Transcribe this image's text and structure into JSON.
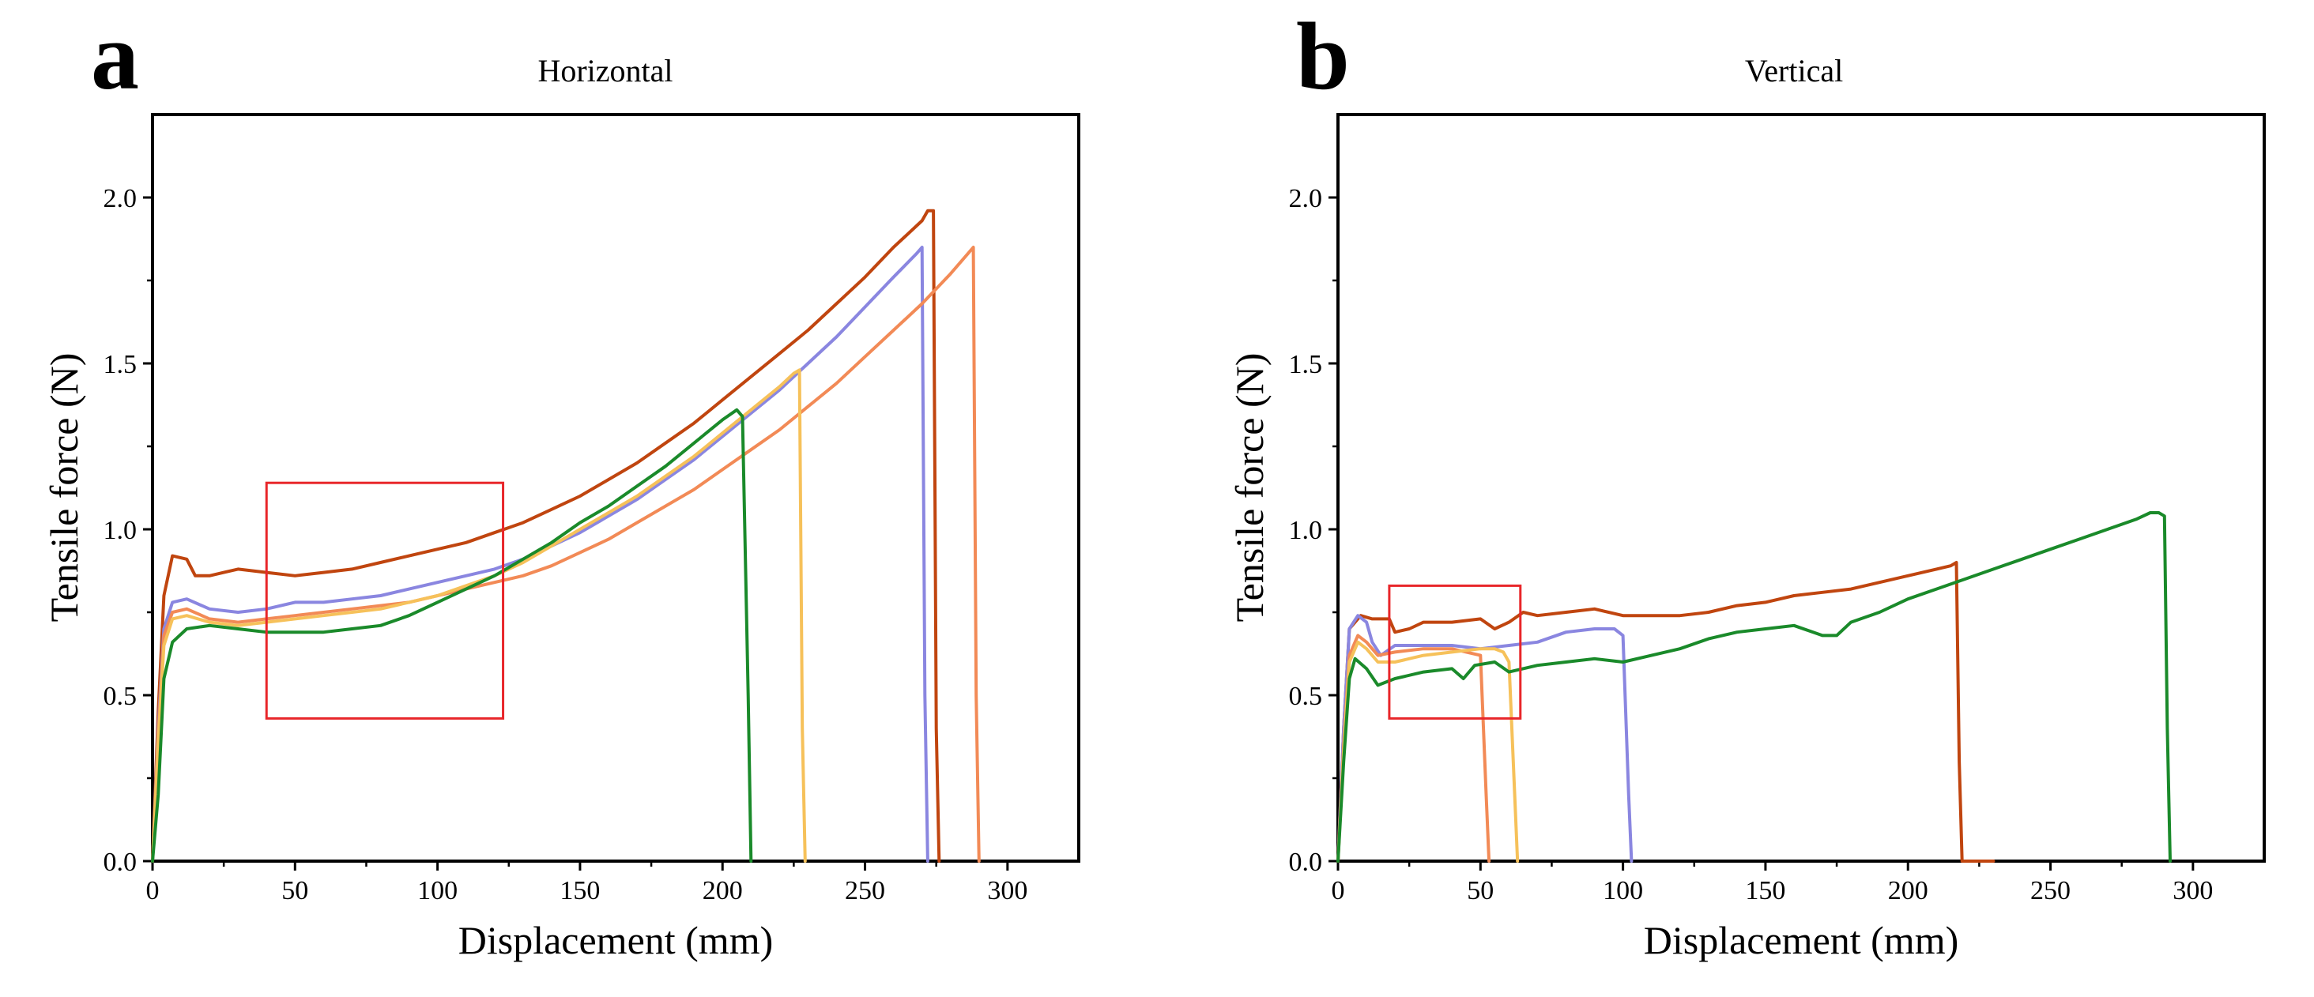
{
  "chart_data": [
    {
      "type": "line",
      "panel_label": "a",
      "title": "Horizontal",
      "xlabel": "Displacement (mm)",
      "ylabel": "Tensile  force (N)",
      "xlim": [
        0,
        325
      ],
      "ylim": [
        0,
        2.25
      ],
      "xticks": [
        0,
        50,
        100,
        150,
        200,
        250,
        300
      ],
      "yticks": [
        0.0,
        0.5,
        1.0,
        1.5,
        2.0
      ],
      "xtick_labels": [
        "0",
        "50",
        "100",
        "150",
        "200",
        "250",
        "300"
      ],
      "ytick_labels": [
        "0.0",
        "0.5",
        "1.0",
        "1.5",
        "2.0"
      ],
      "grid": false,
      "legend": "none",
      "highlight_box": {
        "x": [
          40,
          123
        ],
        "y": [
          0.43,
          1.14
        ],
        "color": "#e8262a"
      },
      "series": [
        {
          "color": "#c0450f",
          "x": [
            0,
            2,
            4,
            7,
            12,
            15,
            20,
            25,
            30,
            40,
            50,
            60,
            70,
            80,
            90,
            100,
            110,
            120,
            130,
            140,
            150,
            160,
            170,
            180,
            190,
            200,
            210,
            220,
            230,
            240,
            250,
            260,
            270,
            272,
            274,
            275,
            276
          ],
          "y": [
            0,
            0.45,
            0.8,
            0.92,
            0.91,
            0.86,
            0.86,
            0.87,
            0.88,
            0.87,
            0.86,
            0.87,
            0.88,
            0.9,
            0.92,
            0.94,
            0.96,
            0.99,
            1.02,
            1.06,
            1.1,
            1.15,
            1.2,
            1.26,
            1.32,
            1.39,
            1.46,
            1.53,
            1.6,
            1.68,
            1.76,
            1.85,
            1.93,
            1.96,
            1.96,
            0.4,
            0.0
          ]
        },
        {
          "color": "#8a86e0",
          "x": [
            0,
            2,
            4,
            7,
            12,
            20,
            30,
            40,
            50,
            60,
            70,
            80,
            90,
            100,
            110,
            120,
            130,
            140,
            150,
            160,
            170,
            180,
            190,
            200,
            210,
            220,
            230,
            240,
            250,
            260,
            268,
            270,
            271,
            272
          ],
          "y": [
            0,
            0.4,
            0.7,
            0.78,
            0.79,
            0.76,
            0.75,
            0.76,
            0.78,
            0.78,
            0.79,
            0.8,
            0.82,
            0.84,
            0.86,
            0.88,
            0.91,
            0.95,
            0.99,
            1.04,
            1.09,
            1.15,
            1.21,
            1.28,
            1.35,
            1.42,
            1.5,
            1.58,
            1.67,
            1.76,
            1.83,
            1.85,
            0.5,
            0.0
          ]
        },
        {
          "color": "#f28a56",
          "x": [
            0,
            2,
            4,
            7,
            12,
            20,
            30,
            40,
            50,
            60,
            70,
            80,
            90,
            100,
            110,
            120,
            130,
            140,
            150,
            160,
            170,
            180,
            190,
            200,
            210,
            220,
            230,
            240,
            250,
            260,
            270,
            280,
            286,
            288,
            289,
            290
          ],
          "y": [
            0,
            0.38,
            0.68,
            0.75,
            0.76,
            0.73,
            0.72,
            0.73,
            0.74,
            0.75,
            0.76,
            0.77,
            0.78,
            0.8,
            0.82,
            0.84,
            0.86,
            0.89,
            0.93,
            0.97,
            1.02,
            1.07,
            1.12,
            1.18,
            1.24,
            1.3,
            1.37,
            1.44,
            1.52,
            1.6,
            1.68,
            1.77,
            1.83,
            1.85,
            0.5,
            0.0
          ]
        },
        {
          "color": "#f6c15a",
          "x": [
            0,
            2,
            4,
            7,
            12,
            20,
            30,
            40,
            50,
            60,
            70,
            80,
            90,
            100,
            110,
            120,
            130,
            140,
            150,
            160,
            170,
            180,
            190,
            200,
            210,
            220,
            225,
            227,
            228,
            229
          ],
          "y": [
            0,
            0.36,
            0.65,
            0.73,
            0.74,
            0.72,
            0.71,
            0.72,
            0.73,
            0.74,
            0.75,
            0.76,
            0.78,
            0.8,
            0.83,
            0.86,
            0.9,
            0.95,
            1.0,
            1.05,
            1.1,
            1.16,
            1.22,
            1.29,
            1.36,
            1.43,
            1.47,
            1.48,
            0.4,
            0.0
          ]
        },
        {
          "color": "#1a8a2a",
          "x": [
            0,
            2,
            4,
            7,
            12,
            20,
            30,
            40,
            50,
            60,
            70,
            80,
            90,
            100,
            110,
            120,
            130,
            140,
            150,
            160,
            170,
            180,
            190,
            200,
            205,
            207,
            209,
            210
          ],
          "y": [
            0,
            0.2,
            0.55,
            0.66,
            0.7,
            0.71,
            0.7,
            0.69,
            0.69,
            0.69,
            0.7,
            0.71,
            0.74,
            0.78,
            0.82,
            0.86,
            0.91,
            0.96,
            1.02,
            1.07,
            1.13,
            1.19,
            1.26,
            1.33,
            1.36,
            1.34,
            0.5,
            0.0
          ]
        }
      ]
    },
    {
      "type": "line",
      "panel_label": "b",
      "title": "Vertical",
      "xlabel": "Displacement (mm)",
      "ylabel": "Tensile  force (N)",
      "xlim": [
        0,
        325
      ],
      "ylim": [
        0,
        2.25
      ],
      "xticks": [
        0,
        50,
        100,
        150,
        200,
        250,
        300
      ],
      "yticks": [
        0.0,
        0.5,
        1.0,
        1.5,
        2.0
      ],
      "xtick_labels": [
        "0",
        "50",
        "100",
        "150",
        "200",
        "250",
        "300"
      ],
      "ytick_labels": [
        "0.0",
        "0.5",
        "1.0",
        "1.5",
        "2.0"
      ],
      "grid": false,
      "legend": "none",
      "highlight_box": {
        "x": [
          18,
          64
        ],
        "y": [
          0.43,
          0.83
        ],
        "color": "#e8262a"
      },
      "series": [
        {
          "color": "#c0450f",
          "x": [
            0,
            2,
            4,
            8,
            12,
            18,
            20,
            25,
            30,
            40,
            50,
            55,
            60,
            65,
            70,
            80,
            90,
            100,
            110,
            120,
            130,
            140,
            150,
            160,
            170,
            180,
            190,
            200,
            210,
            215,
            217,
            218,
            219,
            230
          ],
          "y": [
            0,
            0.4,
            0.7,
            0.74,
            0.73,
            0.73,
            0.69,
            0.7,
            0.72,
            0.72,
            0.73,
            0.7,
            0.72,
            0.75,
            0.74,
            0.75,
            0.76,
            0.74,
            0.74,
            0.74,
            0.75,
            0.77,
            0.78,
            0.8,
            0.81,
            0.82,
            0.84,
            0.86,
            0.88,
            0.89,
            0.9,
            0.3,
            0.0,
            0.0
          ]
        },
        {
          "color": "#8a86e0",
          "x": [
            0,
            2,
            4,
            7,
            10,
            12,
            15,
            20,
            30,
            40,
            50,
            60,
            70,
            80,
            90,
            97,
            100,
            102,
            103
          ],
          "y": [
            0,
            0.4,
            0.7,
            0.74,
            0.72,
            0.66,
            0.62,
            0.65,
            0.65,
            0.65,
            0.64,
            0.65,
            0.66,
            0.69,
            0.7,
            0.7,
            0.68,
            0.2,
            0.0
          ]
        },
        {
          "color": "#f28a56",
          "x": [
            0,
            2,
            4,
            7,
            10,
            14,
            20,
            30,
            40,
            45,
            50,
            52,
            53
          ],
          "y": [
            0,
            0.35,
            0.62,
            0.68,
            0.66,
            0.62,
            0.63,
            0.64,
            0.64,
            0.63,
            0.62,
            0.2,
            0.0
          ]
        },
        {
          "color": "#f6c15a",
          "x": [
            0,
            2,
            4,
            7,
            10,
            14,
            20,
            30,
            40,
            50,
            55,
            58,
            60,
            62,
            63
          ],
          "y": [
            0,
            0.33,
            0.6,
            0.66,
            0.64,
            0.6,
            0.6,
            0.62,
            0.63,
            0.64,
            0.64,
            0.63,
            0.6,
            0.2,
            0.0
          ]
        },
        {
          "color": "#1a8a2a",
          "x": [
            0,
            2,
            4,
            6,
            10,
            14,
            20,
            30,
            40,
            44,
            48,
            55,
            60,
            70,
            80,
            90,
            100,
            110,
            120,
            130,
            140,
            150,
            160,
            170,
            175,
            180,
            190,
            200,
            210,
            220,
            230,
            240,
            250,
            260,
            270,
            280,
            285,
            288,
            290,
            291,
            292
          ],
          "y": [
            0,
            0.3,
            0.55,
            0.61,
            0.58,
            0.53,
            0.55,
            0.57,
            0.58,
            0.55,
            0.59,
            0.6,
            0.57,
            0.59,
            0.6,
            0.61,
            0.6,
            0.62,
            0.64,
            0.67,
            0.69,
            0.7,
            0.71,
            0.68,
            0.68,
            0.72,
            0.75,
            0.79,
            0.82,
            0.85,
            0.88,
            0.91,
            0.94,
            0.97,
            1.0,
            1.03,
            1.05,
            1.05,
            1.04,
            0.4,
            0.0
          ]
        }
      ]
    }
  ]
}
